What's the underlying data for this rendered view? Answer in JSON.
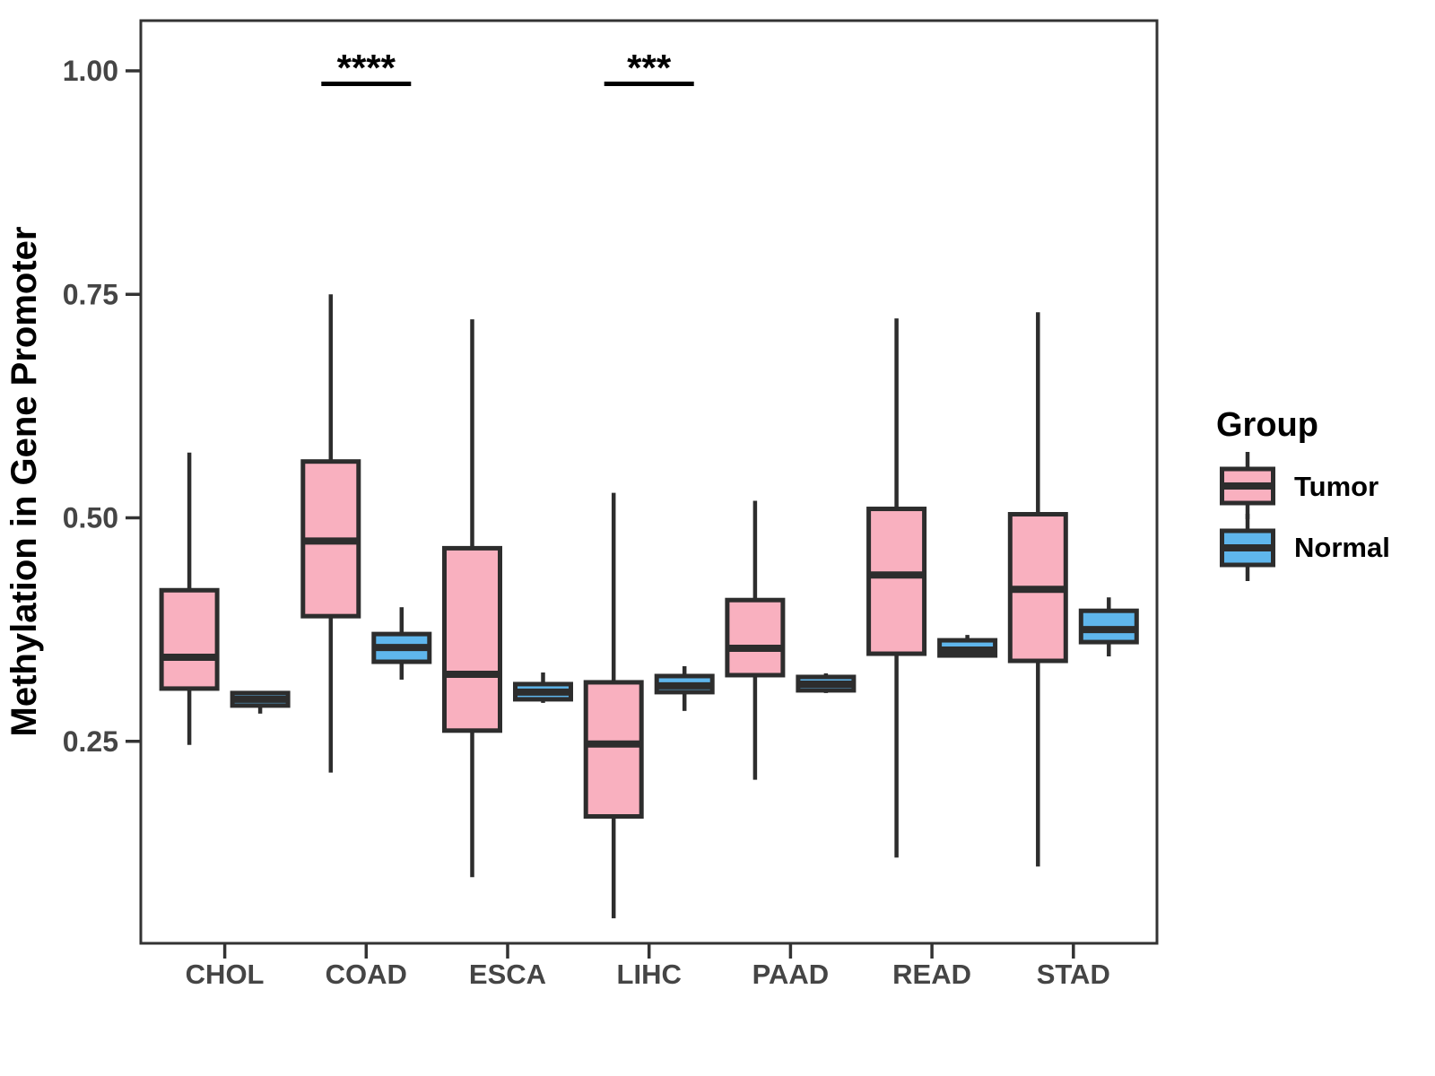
{
  "chart_data": {
    "type": "boxplot",
    "title": "",
    "xlabel": "",
    "ylabel": "Methylation in Gene Promoter",
    "categories": [
      "CHOL",
      "COAD",
      "ESCA",
      "LIHC",
      "PAAD",
      "READ",
      "STAD"
    ],
    "yticks": [
      {
        "value": 0.25,
        "label": "0.25"
      },
      {
        "value": 0.5,
        "label": "0.50"
      },
      {
        "value": 0.75,
        "label": "0.75"
      },
      {
        "value": 1.0,
        "label": "1.00"
      }
    ],
    "ylim": [
      0.02,
      1.06
    ],
    "grid": false,
    "legend_position": "right",
    "series": [
      {
        "name": "Tumor",
        "color_ref": 0,
        "data": [
          {
            "category": "CHOL",
            "whisker_low": 0.246,
            "q1": 0.309,
            "median": 0.344,
            "q3": 0.419,
            "whisker_high": 0.573
          },
          {
            "category": "COAD",
            "whisker_low": 0.215,
            "q1": 0.39,
            "median": 0.474,
            "q3": 0.563,
            "whisker_high": 0.75
          },
          {
            "category": "ESCA",
            "whisker_low": 0.098,
            "q1": 0.262,
            "median": 0.325,
            "q3": 0.466,
            "whisker_high": 0.722
          },
          {
            "category": "LIHC",
            "whisker_low": 0.052,
            "q1": 0.166,
            "median": 0.247,
            "q3": 0.316,
            "whisker_high": 0.528
          },
          {
            "category": "PAAD",
            "whisker_low": 0.207,
            "q1": 0.324,
            "median": 0.354,
            "q3": 0.408,
            "whisker_high": 0.519
          },
          {
            "category": "READ",
            "whisker_low": 0.12,
            "q1": 0.348,
            "median": 0.436,
            "q3": 0.51,
            "whisker_high": 0.723
          },
          {
            "category": "STAD",
            "whisker_low": 0.11,
            "q1": 0.34,
            "median": 0.42,
            "q3": 0.504,
            "whisker_high": 0.73
          }
        ]
      },
      {
        "name": "Normal",
        "color_ref": 1,
        "data": [
          {
            "category": "CHOL",
            "whisker_low": 0.281,
            "q1": 0.29,
            "median": 0.297,
            "q3": 0.304,
            "whisker_high": 0.306
          },
          {
            "category": "COAD",
            "whisker_low": 0.319,
            "q1": 0.339,
            "median": 0.355,
            "q3": 0.37,
            "whisker_high": 0.4
          },
          {
            "category": "ESCA",
            "whisker_low": 0.293,
            "q1": 0.297,
            "median": 0.305,
            "q3": 0.314,
            "whisker_high": 0.327
          },
          {
            "category": "LIHC",
            "whisker_low": 0.284,
            "q1": 0.305,
            "median": 0.312,
            "q3": 0.323,
            "whisker_high": 0.334
          },
          {
            "category": "PAAD",
            "whisker_low": 0.304,
            "q1": 0.307,
            "median": 0.314,
            "q3": 0.322,
            "whisker_high": 0.326
          },
          {
            "category": "READ",
            "whisker_low": 0.344,
            "q1": 0.346,
            "median": 0.352,
            "q3": 0.363,
            "whisker_high": 0.369
          },
          {
            "category": "STAD",
            "whisker_low": 0.345,
            "q1": 0.361,
            "median": 0.375,
            "q3": 0.396,
            "whisker_high": 0.411
          }
        ]
      }
    ],
    "significance": [
      {
        "category": "COAD",
        "label": "****"
      },
      {
        "category": "LIHC",
        "label": "***"
      }
    ],
    "legend": {
      "title": "Group",
      "items": [
        {
          "label": "Tumor",
          "color": "#F9B0BF"
        },
        {
          "label": "Normal",
          "color": "#5FB6EC"
        }
      ]
    }
  },
  "style": {
    "stroke": "#2D2D2D",
    "panel_border": "#333333",
    "axis_text_color": "#454545",
    "title_color": "#000000",
    "background": "#FFFFFF"
  }
}
